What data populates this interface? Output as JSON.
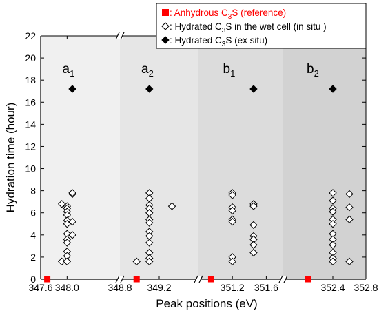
{
  "chart_data": {
    "type": "scatter",
    "title": "",
    "xlabel": "Peak positions (eV)",
    "ylabel": "Hydration time (hour)",
    "ylim": [
      0,
      22
    ],
    "y_ticks": [
      0,
      2,
      4,
      6,
      8,
      10,
      12,
      14,
      16,
      18,
      20,
      22
    ],
    "legend_position": "top-right",
    "grid": false,
    "segments": [
      {
        "label": "a",
        "subscript": "1",
        "xlim": [
          347.6,
          348.8
        ],
        "ticks": [
          "347.6",
          "348.0",
          "348.8"
        ],
        "shade": "#f0f0f0",
        "anhydrous": [
          {
            "x": 347.7,
            "y": 0
          }
        ],
        "in_situ": [
          {
            "x": 347.92,
            "y": 6.8
          },
          {
            "x": 347.92,
            "y": 1.6
          },
          {
            "x": 348.0,
            "y": 6.6
          },
          {
            "x": 348.0,
            "y": 6.4
          },
          {
            "x": 348.0,
            "y": 6.1
          },
          {
            "x": 348.0,
            "y": 5.8
          },
          {
            "x": 348.0,
            "y": 5.3
          },
          {
            "x": 348.0,
            "y": 5.0
          },
          {
            "x": 348.0,
            "y": 4.1
          },
          {
            "x": 348.0,
            "y": 3.6
          },
          {
            "x": 348.0,
            "y": 3.3
          },
          {
            "x": 348.0,
            "y": 2.5
          },
          {
            "x": 348.0,
            "y": 2.1
          },
          {
            "x": 348.0,
            "y": 1.6
          },
          {
            "x": 348.08,
            "y": 7.7
          },
          {
            "x": 348.08,
            "y": 7.8
          },
          {
            "x": 348.08,
            "y": 5.2
          },
          {
            "x": 348.08,
            "y": 4.0
          }
        ],
        "ex_situ": [
          {
            "x": 348.08,
            "y": 17.2
          }
        ]
      },
      {
        "label": "a",
        "subscript": "2",
        "xlim": [
          348.8,
          349.6
        ],
        "ticks": [
          "349.2"
        ],
        "shade": "#e6e6e6",
        "anhydrous": [
          {
            "x": 348.97,
            "y": 0
          }
        ],
        "in_situ": [
          {
            "x": 348.97,
            "y": 1.6
          },
          {
            "x": 349.1,
            "y": 7.8
          },
          {
            "x": 349.1,
            "y": 7.3
          },
          {
            "x": 349.1,
            "y": 6.7
          },
          {
            "x": 349.1,
            "y": 6.4
          },
          {
            "x": 349.1,
            "y": 6.0
          },
          {
            "x": 349.1,
            "y": 5.4
          },
          {
            "x": 349.1,
            "y": 5.1
          },
          {
            "x": 349.1,
            "y": 4.3
          },
          {
            "x": 349.1,
            "y": 3.9
          },
          {
            "x": 349.1,
            "y": 3.3
          },
          {
            "x": 349.1,
            "y": 2.4
          },
          {
            "x": 349.1,
            "y": 1.9
          },
          {
            "x": 349.1,
            "y": 1.6
          },
          {
            "x": 349.33,
            "y": 6.6
          }
        ],
        "ex_situ": [
          {
            "x": 349.1,
            "y": 17.2
          }
        ]
      },
      {
        "label": "b",
        "subscript": "1",
        "xlim": [
          350.8,
          351.8
        ],
        "ticks": [
          "351.2",
          "351.6"
        ],
        "shade": "#dcdcdc",
        "anhydrous": [
          {
            "x": 350.95,
            "y": 0
          }
        ],
        "in_situ": [
          {
            "x": 351.2,
            "y": 7.8
          },
          {
            "x": 351.2,
            "y": 7.6
          },
          {
            "x": 351.2,
            "y": 6.5
          },
          {
            "x": 351.2,
            "y": 6.2
          },
          {
            "x": 351.2,
            "y": 5.4
          },
          {
            "x": 351.2,
            "y": 5.2
          },
          {
            "x": 351.2,
            "y": 2.0
          },
          {
            "x": 351.2,
            "y": 1.6
          },
          {
            "x": 351.45,
            "y": 6.8
          },
          {
            "x": 351.45,
            "y": 6.6
          },
          {
            "x": 351.45,
            "y": 4.9
          },
          {
            "x": 351.45,
            "y": 3.9
          },
          {
            "x": 351.45,
            "y": 3.6
          },
          {
            "x": 351.45,
            "y": 3.1
          },
          {
            "x": 351.45,
            "y": 2.4
          }
        ],
        "ex_situ": [
          {
            "x": 351.45,
            "y": 17.2
          }
        ]
      },
      {
        "label": "b",
        "subscript": "2",
        "xlim": [
          351.8,
          352.8
        ],
        "ticks": [
          "352.4",
          "352.8"
        ],
        "shade": "#d2d2d2",
        "anhydrous": [
          {
            "x": 352.1,
            "y": 0
          }
        ],
        "in_situ": [
          {
            "x": 352.4,
            "y": 7.8
          },
          {
            "x": 352.4,
            "y": 7.1
          },
          {
            "x": 352.4,
            "y": 6.4
          },
          {
            "x": 352.4,
            "y": 6.1
          },
          {
            "x": 352.4,
            "y": 5.4
          },
          {
            "x": 352.4,
            "y": 5.0
          },
          {
            "x": 352.4,
            "y": 4.1
          },
          {
            "x": 352.4,
            "y": 3.6
          },
          {
            "x": 352.4,
            "y": 3.1
          },
          {
            "x": 352.4,
            "y": 2.4
          },
          {
            "x": 352.4,
            "y": 1.9
          },
          {
            "x": 352.4,
            "y": 1.6
          },
          {
            "x": 352.6,
            "y": 7.7
          },
          {
            "x": 352.6,
            "y": 6.5
          },
          {
            "x": 352.6,
            "y": 5.4
          },
          {
            "x": 352.6,
            "y": 1.6
          }
        ],
        "ex_situ": [
          {
            "x": 352.4,
            "y": 17.2
          }
        ]
      }
    ],
    "legend": [
      {
        "marker": "filled-square",
        "color": "#ff0000",
        "prefix": ": Anhydrous C",
        "sub": "3",
        "suffix": "S (reference)"
      },
      {
        "marker": "open-diamond",
        "color": "#000000",
        "prefix": ": Hydrated C",
        "sub": "3",
        "suffix": "S in the wet cell (in situ )"
      },
      {
        "marker": "filled-diamond",
        "color": "#000000",
        "prefix": ": Hydrated C",
        "sub": "3",
        "suffix": "S (ex situ)"
      }
    ],
    "colors": {
      "anhydrous": "#ff0000",
      "hydrated": "#000000",
      "legend_border": "#000000"
    }
  }
}
